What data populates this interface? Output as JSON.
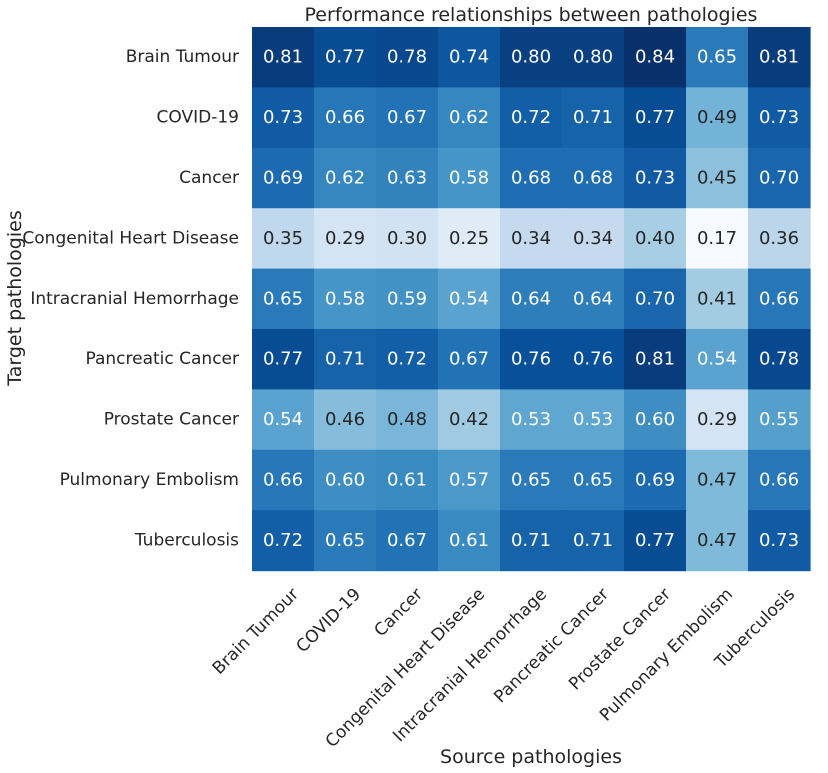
{
  "chart_data": {
    "type": "heatmap",
    "title": "Performance relationships between pathologies",
    "xlabel": "Source pathologies",
    "ylabel": "Target pathologies",
    "x_categories": [
      "Brain Tumour",
      "COVID-19",
      "Cancer",
      "Congenital Heart Disease",
      "Intracranial Hemorrhage",
      "Pancreatic Cancer",
      "Prostate Cancer",
      "Pulmonary Embolism",
      "Tuberculosis"
    ],
    "y_categories": [
      "Brain Tumour",
      "COVID-19",
      "Cancer",
      "Congenital Heart Disease",
      "Intracranial Hemorrhage",
      "Pancreatic Cancer",
      "Prostate Cancer",
      "Pulmonary Embolism",
      "Tuberculosis"
    ],
    "values": [
      [
        0.81,
        0.77,
        0.78,
        0.74,
        0.8,
        0.8,
        0.84,
        0.65,
        0.81
      ],
      [
        0.73,
        0.66,
        0.67,
        0.62,
        0.72,
        0.71,
        0.77,
        0.49,
        0.73
      ],
      [
        0.69,
        0.62,
        0.63,
        0.58,
        0.68,
        0.68,
        0.73,
        0.45,
        0.7
      ],
      [
        0.35,
        0.29,
        0.3,
        0.25,
        0.34,
        0.34,
        0.4,
        0.17,
        0.36
      ],
      [
        0.65,
        0.58,
        0.59,
        0.54,
        0.64,
        0.64,
        0.7,
        0.41,
        0.66
      ],
      [
        0.77,
        0.71,
        0.72,
        0.67,
        0.76,
        0.76,
        0.81,
        0.54,
        0.78
      ],
      [
        0.54,
        0.46,
        0.48,
        0.42,
        0.53,
        0.53,
        0.6,
        0.29,
        0.55
      ],
      [
        0.66,
        0.6,
        0.61,
        0.57,
        0.65,
        0.65,
        0.69,
        0.47,
        0.66
      ],
      [
        0.72,
        0.65,
        0.67,
        0.61,
        0.71,
        0.71,
        0.77,
        0.47,
        0.73
      ]
    ],
    "colormap": "Blues",
    "value_format": "2 decimals",
    "colorbar": false,
    "grid": false
  }
}
